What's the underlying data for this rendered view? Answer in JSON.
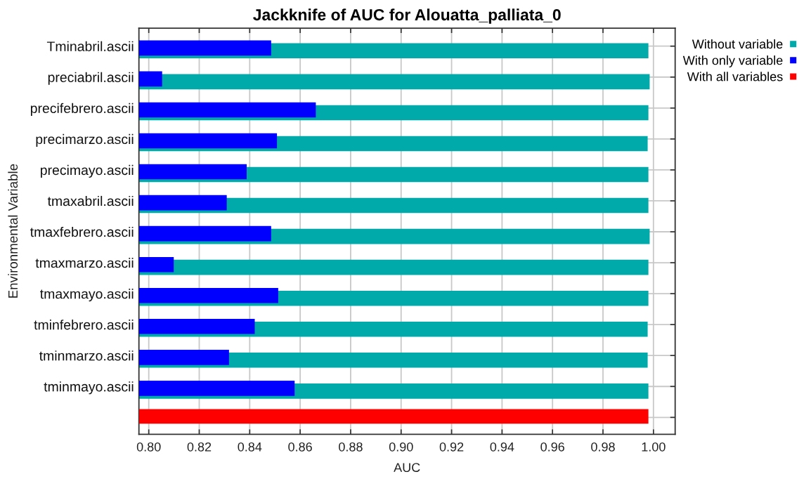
{
  "chart_data": {
    "type": "bar",
    "orientation": "horizontal",
    "title": "Jackknife of AUC for Alouatta_palliata_0",
    "xlabel": "AUC",
    "ylabel": "Environmental Variable",
    "categories": [
      "Tminabril.ascii",
      "preciabril.ascii",
      "precifebrero.ascii",
      "precimarzo.ascii",
      "precimayo.ascii",
      "tmaxabril.ascii",
      "tmaxfebrero.ascii",
      "tmaxmarzo.ascii",
      "tmaxmayo.ascii",
      "tminfebrero.ascii",
      "tminmarzo.ascii",
      "tminmayo.ascii",
      null
    ],
    "series": [
      {
        "name": "Without variable",
        "color": "#00aaaa",
        "values": [
          0.998,
          0.9985,
          0.998,
          0.9977,
          0.998,
          0.998,
          0.9985,
          0.998,
          0.998,
          0.9977,
          0.9977,
          0.998,
          null
        ]
      },
      {
        "name": "With only variable",
        "color": "#0000ff",
        "values": [
          0.8485,
          0.8053,
          0.8662,
          0.8508,
          0.8388,
          0.8309,
          0.8485,
          0.8099,
          0.8513,
          0.842,
          0.8318,
          0.8578,
          null
        ]
      },
      {
        "name": "With all variables",
        "color": "#ff0000",
        "values": [
          null,
          null,
          null,
          null,
          null,
          null,
          null,
          null,
          null,
          null,
          null,
          null,
          0.998
        ]
      }
    ],
    "xlim": [
      0.7961,
      1.0086
    ],
    "xticks": [
      {
        "value": 0.8,
        "label": "0.80"
      },
      {
        "value": 0.82,
        "label": "0.82"
      },
      {
        "value": 0.84,
        "label": "0.84"
      },
      {
        "value": 0.86,
        "label": "0.86"
      },
      {
        "value": 0.88,
        "label": "0.88"
      },
      {
        "value": 0.9,
        "label": "0.90"
      },
      {
        "value": 0.92,
        "label": "0.92"
      },
      {
        "value": 0.94,
        "label": "0.94"
      },
      {
        "value": 0.96,
        "label": "0.96"
      },
      {
        "value": 0.98,
        "label": "0.98"
      },
      {
        "value": 1.0,
        "label": "1.00"
      }
    ],
    "grid": true,
    "legend": "top right"
  }
}
